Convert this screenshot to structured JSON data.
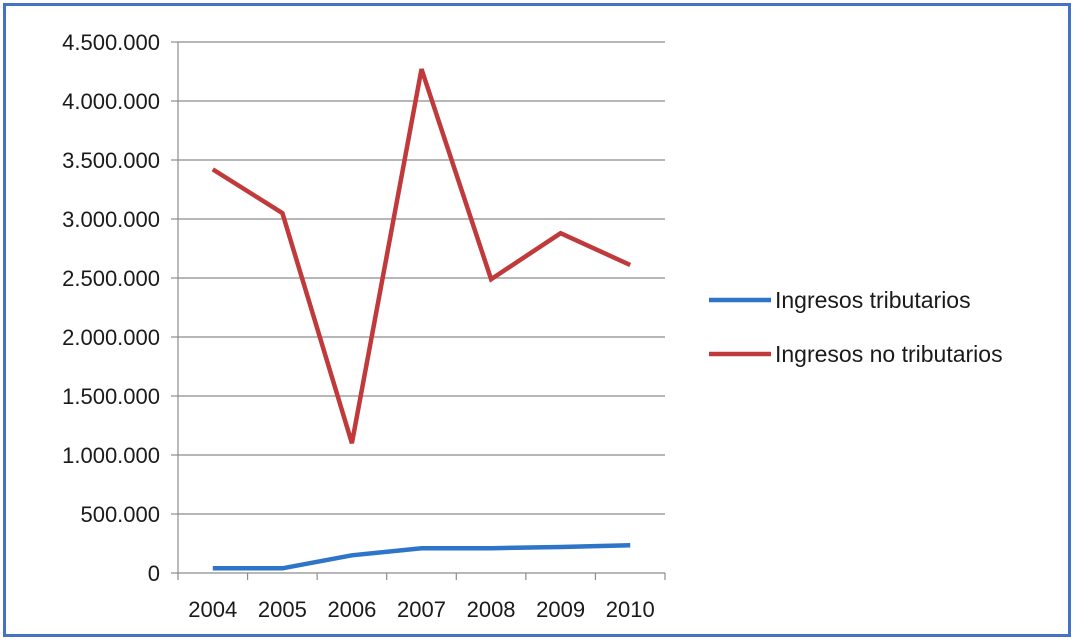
{
  "chart_data": {
    "type": "line",
    "categories": [
      "2004",
      "2005",
      "2006",
      "2007",
      "2008",
      "2009",
      "2010"
    ],
    "series": [
      {
        "name": "Ingresos tributarios",
        "color": "#2e75c8",
        "values": [
          40000,
          40000,
          150000,
          210000,
          210000,
          220000,
          235000
        ]
      },
      {
        "name": "Ingresos no tributarios",
        "color": "#c0393b",
        "values": [
          3420000,
          3050000,
          1100000,
          4270000,
          2490000,
          2880000,
          2610000
        ]
      }
    ],
    "ylim": [
      0,
      4500000
    ],
    "yticks": [
      0,
      500000,
      1000000,
      1500000,
      2000000,
      2500000,
      3000000,
      3500000,
      4000000,
      4500000
    ],
    "ytick_labels": [
      "0",
      "500.000",
      "1.000.000",
      "1.500.000",
      "2.000.000",
      "2.500.000",
      "3.000.000",
      "3.500.000",
      "4.000.000",
      "4.500.000"
    ],
    "grid": true,
    "legend_position": "right"
  }
}
